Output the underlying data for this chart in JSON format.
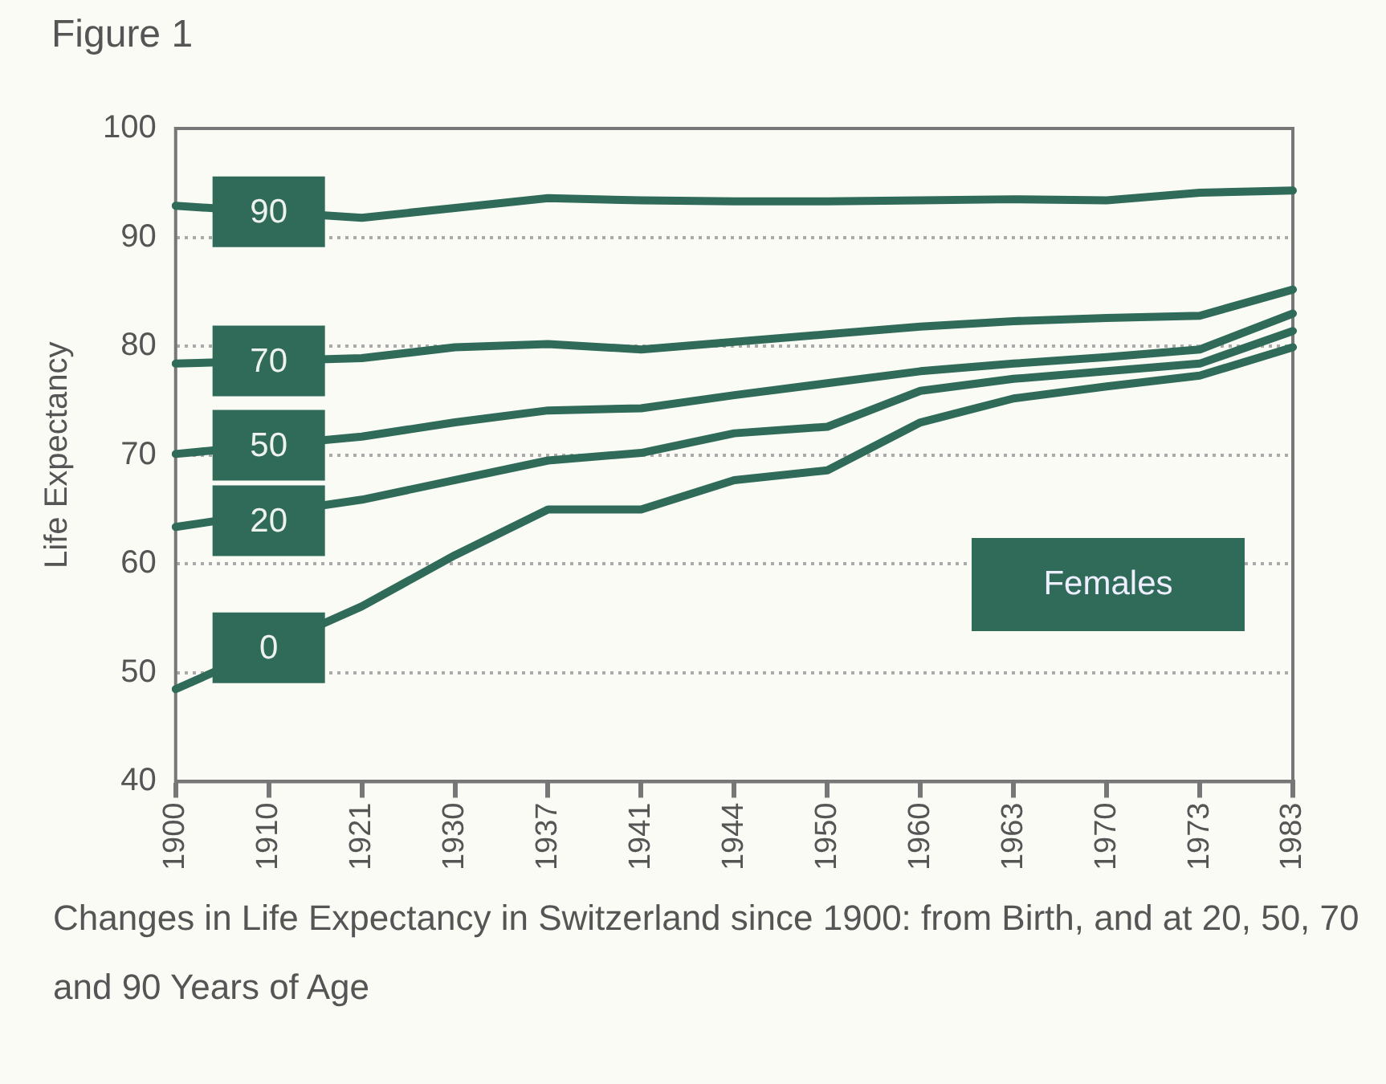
{
  "chart_data": {
    "type": "line",
    "title": "Figure 1",
    "ylabel": "Life Expectancy",
    "categories": [
      "1900",
      "1910",
      "1921",
      "1930",
      "1937",
      "1941",
      "1944",
      "1950",
      "1960",
      "1963",
      "1970",
      "1973",
      "1983"
    ],
    "series": [
      {
        "name": "90",
        "color": "#2f6b58",
        "values": [
          92.9,
          null,
          91.8,
          92.7,
          93.6,
          93.4,
          93.3,
          93.3,
          93.4,
          93.5,
          93.4,
          94.1,
          94.3
        ]
      },
      {
        "name": "70",
        "color": "#2f6b58",
        "values": [
          78.4,
          null,
          78.9,
          79.9,
          80.2,
          79.7,
          80.4,
          81.1,
          81.8,
          82.3,
          82.6,
          82.8,
          85.2
        ]
      },
      {
        "name": "50",
        "color": "#2f6b58",
        "values": [
          70.1,
          null,
          71.7,
          73.0,
          74.1,
          74.3,
          75.5,
          76.6,
          77.7,
          78.4,
          79.0,
          79.7,
          83.0
        ]
      },
      {
        "name": "20",
        "color": "#2f6b58",
        "values": [
          63.4,
          null,
          65.9,
          67.7,
          69.5,
          70.2,
          72.0,
          72.6,
          75.9,
          77.0,
          77.7,
          78.4,
          81.4
        ]
      },
      {
        "name": "0",
        "color": "#2f6b58",
        "values": [
          48.5,
          null,
          56.1,
          60.8,
          65.0,
          65.0,
          67.7,
          68.6,
          73.0,
          75.2,
          76.3,
          77.3,
          79.9
        ]
      }
    ],
    "ylim": [
      40,
      100
    ],
    "yticks": [
      40,
      50,
      60,
      70,
      80,
      90,
      100
    ],
    "grid": "y",
    "legend": "left",
    "marker": "none",
    "line_style": "solid",
    "annotations": [
      "Females",
      "Changes in Life Expectancy in Switzerland since 1900: from Birth, and at 20, 50, 70 and 90 Years of Age"
    ]
  }
}
